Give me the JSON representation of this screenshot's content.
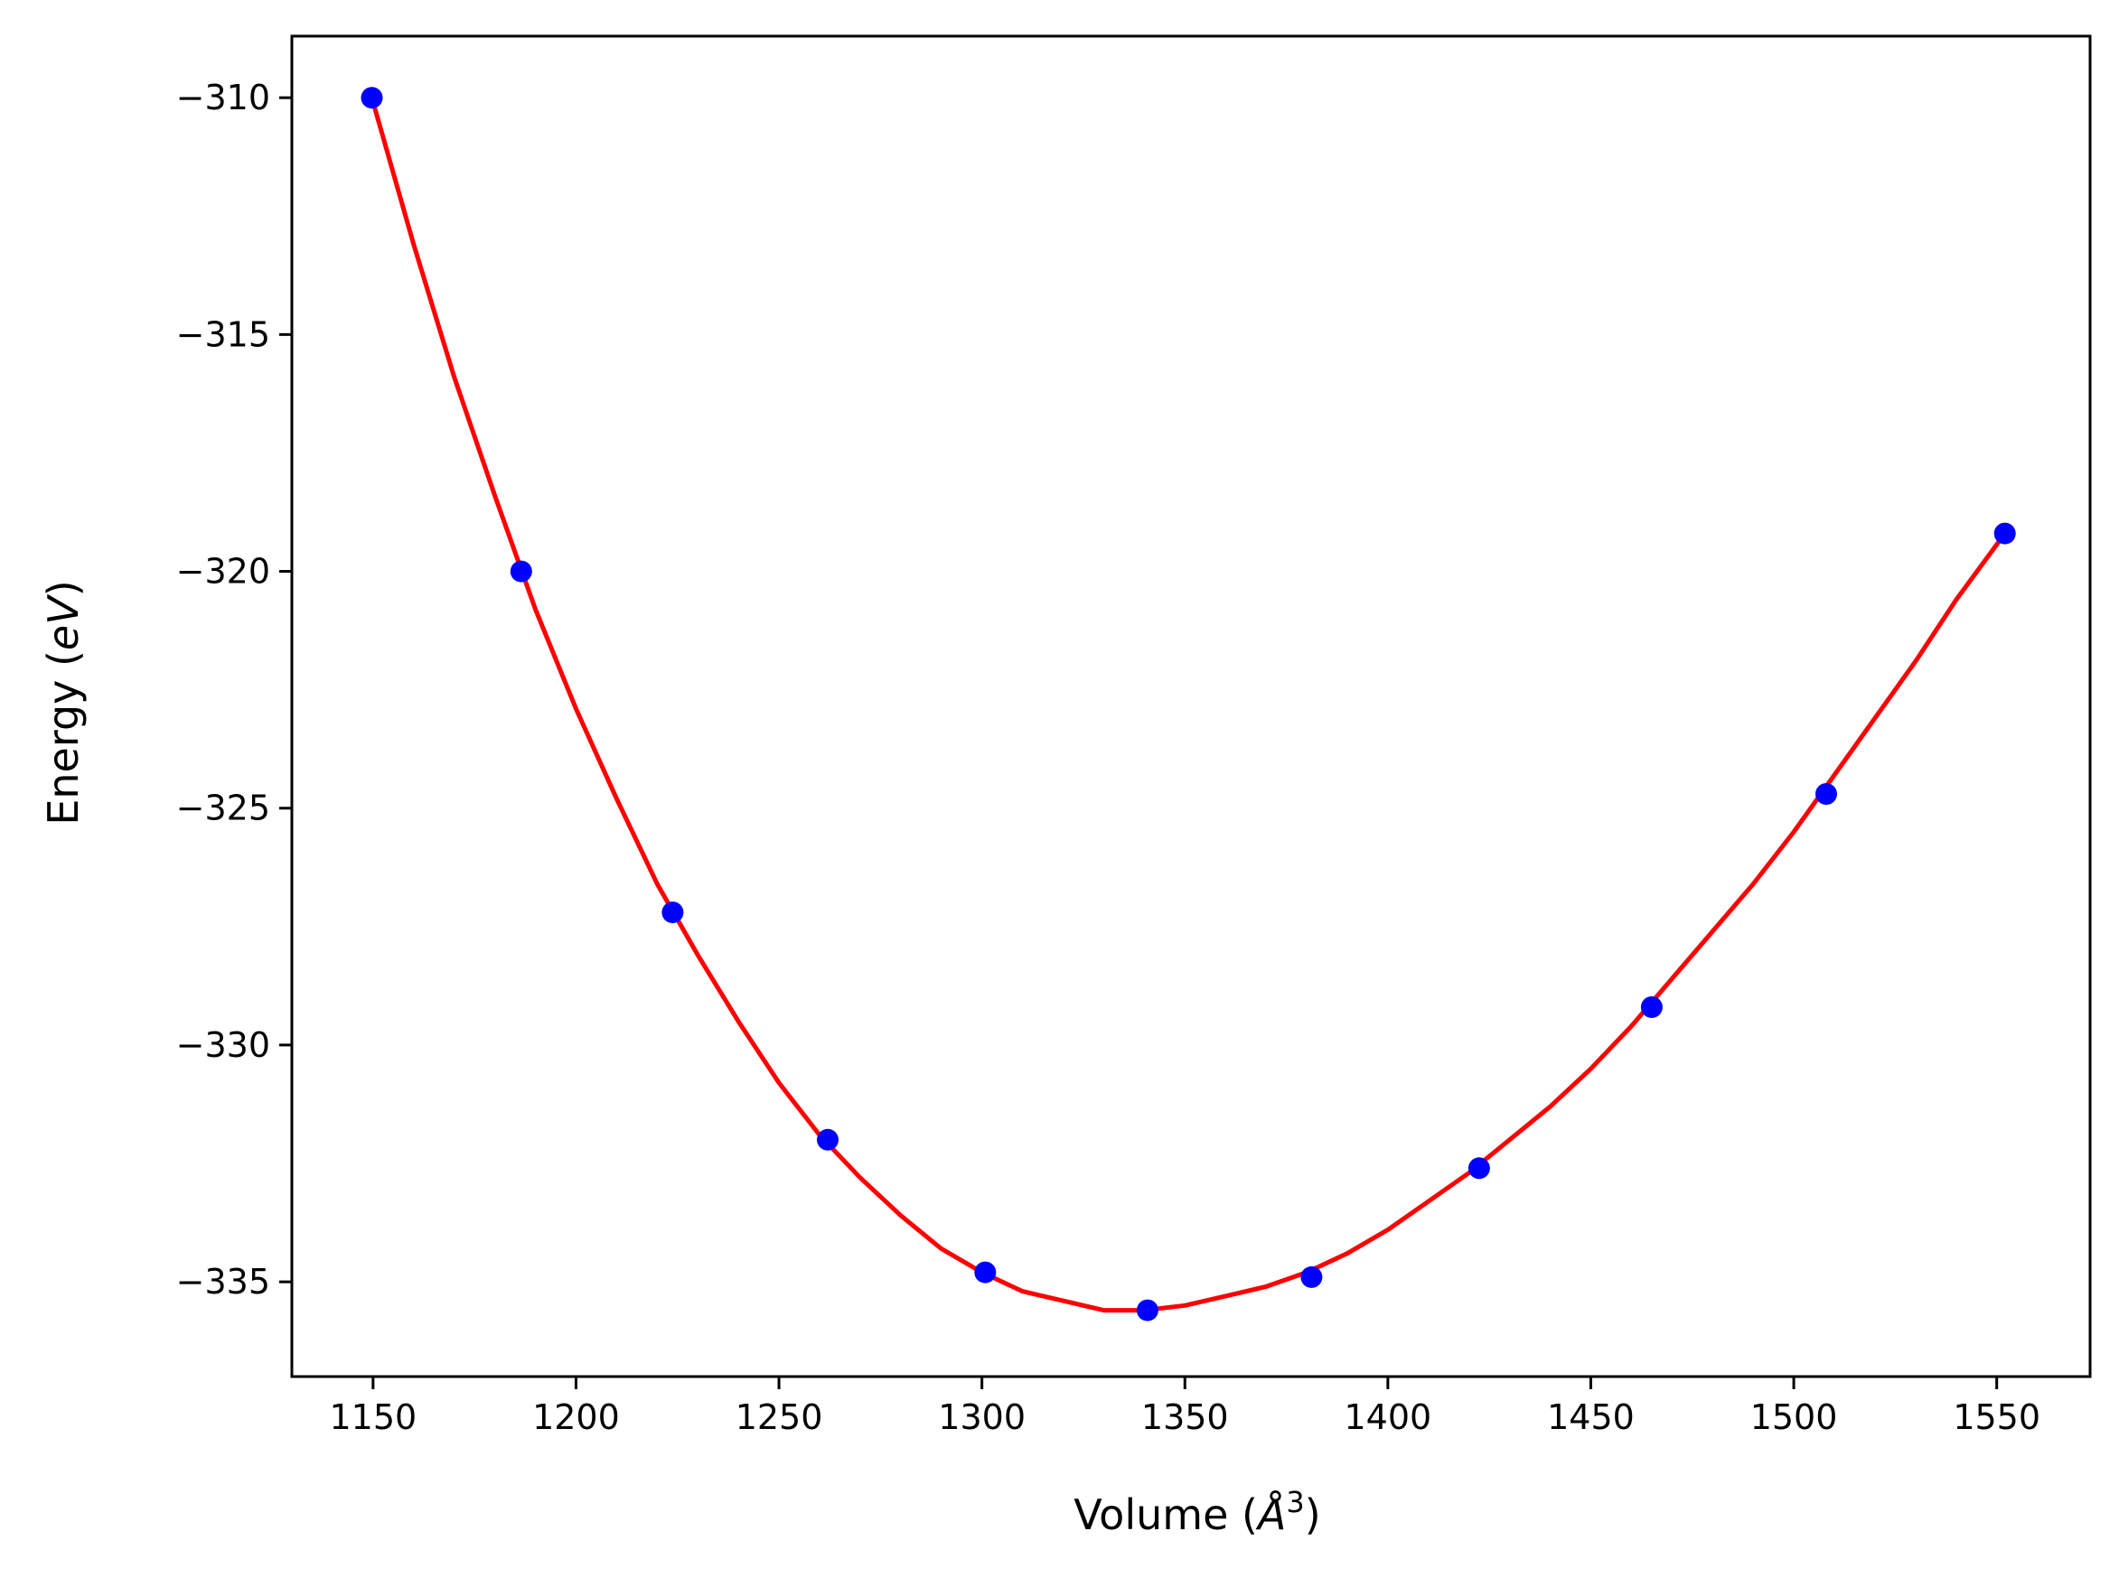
{
  "chart_data": {
    "type": "scatter",
    "xlabel": "Volume (",
    "xlabel_unit": "Å",
    "xlabel_exp": "3",
    "xlabel_close": ")",
    "ylabel": "Energy (",
    "ylabel_unit": "eV",
    "ylabel_close": ")",
    "xlim": [
      1130,
      1573
    ],
    "ylim": [
      -337,
      -308.7
    ],
    "xticks": [
      1150,
      1200,
      1250,
      1300,
      1350,
      1400,
      1450,
      1500,
      1550
    ],
    "yticks": [
      -310,
      -315,
      -320,
      -325,
      -330,
      -335
    ],
    "ytick_labels": [
      "−310",
      "−315",
      "−320",
      "−325",
      "−330",
      "−335"
    ],
    "grid": false,
    "series": [
      {
        "kind": "points",
        "color": "#0000ff",
        "x": [
          1149.7,
          1186.5,
          1223.8,
          1262.0,
          1300.8,
          1340.8,
          1381.2,
          1422.5,
          1465.0,
          1508.0,
          1552.0
        ],
        "y": [
          -310.0,
          -320.0,
          -327.2,
          -332.0,
          -334.8,
          -335.6,
          -334.9,
          -332.6,
          -329.2,
          -324.7,
          -319.2
        ]
      },
      {
        "kind": "fit-curve",
        "color": "#ff0000",
        "x": [
          1149.7,
          1160,
          1170,
          1180,
          1190,
          1200,
          1210,
          1220,
          1230,
          1240,
          1250,
          1260,
          1270,
          1280,
          1290,
          1300,
          1310,
          1320,
          1330,
          1340,
          1350,
          1360,
          1370,
          1380,
          1390,
          1400,
          1410,
          1420,
          1430,
          1440,
          1450,
          1460,
          1470,
          1480,
          1490,
          1500,
          1510,
          1520,
          1530,
          1540,
          1552.0
        ],
        "y": [
          -310.0,
          -313.1,
          -315.9,
          -318.4,
          -320.8,
          -322.9,
          -324.8,
          -326.6,
          -328.1,
          -329.5,
          -330.8,
          -331.9,
          -332.8,
          -333.6,
          -334.3,
          -334.8,
          -335.2,
          -335.4,
          -335.6,
          -335.6,
          -335.5,
          -335.3,
          -335.1,
          -334.8,
          -334.4,
          -333.9,
          -333.3,
          -332.7,
          -332.0,
          -331.3,
          -330.5,
          -329.6,
          -328.6,
          -327.6,
          -326.6,
          -325.5,
          -324.3,
          -323.1,
          -321.9,
          -320.6,
          -319.2
        ]
      }
    ]
  }
}
